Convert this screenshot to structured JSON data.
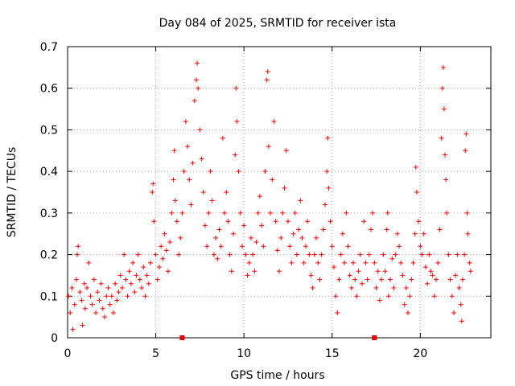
{
  "chart_data": {
    "type": "scatter",
    "title": "Day 084 of 2025, SRMTID for receiver ista",
    "xlabel": "GPS time / hours",
    "ylabel": "SRMTID / TECUs",
    "xlim": [
      0,
      24
    ],
    "ylim": [
      0,
      0.7
    ],
    "xticks": [
      0,
      5,
      10,
      15,
      20
    ],
    "xtick_labels": [
      "0",
      "5",
      "10",
      "15",
      "20"
    ],
    "yticks": [
      0,
      0.1,
      0.2,
      0.3,
      0.4,
      0.5,
      0.6,
      0.7
    ],
    "ytick_labels": [
      "0",
      "0.1",
      "0.2",
      "0.3",
      "0.4",
      "0.5",
      "0.6",
      "0.7"
    ],
    "grid": true,
    "marker": "+",
    "color": "#ff0000",
    "x_markers": [
      6.5,
      17.4
    ],
    "series": [
      {
        "name": "SRMTID",
        "points": [
          [
            0.05,
            0.1
          ],
          [
            0.15,
            0.06
          ],
          [
            0.25,
            0.12
          ],
          [
            0.3,
            0.02
          ],
          [
            0.4,
            0.08
          ],
          [
            0.5,
            0.14
          ],
          [
            0.55,
            0.2
          ],
          [
            0.6,
            0.22
          ],
          [
            0.7,
            0.11
          ],
          [
            0.8,
            0.09
          ],
          [
            0.85,
            0.03
          ],
          [
            0.95,
            0.13
          ],
          [
            1.0,
            0.07
          ],
          [
            1.1,
            0.12
          ],
          [
            1.2,
            0.18
          ],
          [
            1.3,
            0.1
          ],
          [
            1.4,
            0.08
          ],
          [
            1.5,
            0.14
          ],
          [
            1.6,
            0.06
          ],
          [
            1.7,
            0.11
          ],
          [
            1.8,
            0.09
          ],
          [
            1.9,
            0.13
          ],
          [
            2.0,
            0.07
          ],
          [
            2.1,
            0.05
          ],
          [
            2.2,
            0.1
          ],
          [
            2.3,
            0.12
          ],
          [
            2.4,
            0.08
          ],
          [
            2.5,
            0.1
          ],
          [
            2.6,
            0.06
          ],
          [
            2.7,
            0.13
          ],
          [
            2.8,
            0.09
          ],
          [
            2.9,
            0.11
          ],
          [
            3.0,
            0.15
          ],
          [
            3.1,
            0.12
          ],
          [
            3.2,
            0.2
          ],
          [
            3.3,
            0.14
          ],
          [
            3.4,
            0.1
          ],
          [
            3.5,
            0.16
          ],
          [
            3.6,
            0.13
          ],
          [
            3.7,
            0.18
          ],
          [
            3.8,
            0.11
          ],
          [
            3.9,
            0.15
          ],
          [
            4.0,
            0.2
          ],
          [
            4.1,
            0.14
          ],
          [
            4.2,
            0.12
          ],
          [
            4.3,
            0.17
          ],
          [
            4.4,
            0.1
          ],
          [
            4.5,
            0.15
          ],
          [
            4.6,
            0.13
          ],
          [
            4.7,
            0.18
          ],
          [
            4.8,
            0.35
          ],
          [
            4.85,
            0.37
          ],
          [
            4.9,
            0.28
          ],
          [
            5.0,
            0.2
          ],
          [
            5.1,
            0.14
          ],
          [
            5.2,
            0.17
          ],
          [
            5.3,
            0.22
          ],
          [
            5.4,
            0.19
          ],
          [
            5.5,
            0.25
          ],
          [
            5.6,
            0.21
          ],
          [
            5.7,
            0.16
          ],
          [
            5.8,
            0.23
          ],
          [
            5.9,
            0.3
          ],
          [
            6.0,
            0.38
          ],
          [
            6.05,
            0.45
          ],
          [
            6.1,
            0.33
          ],
          [
            6.2,
            0.28
          ],
          [
            6.3,
            0.2
          ],
          [
            6.4,
            0.24
          ],
          [
            6.5,
            0.3
          ],
          [
            6.6,
            0.4
          ],
          [
            6.7,
            0.52
          ],
          [
            6.8,
            0.46
          ],
          [
            6.9,
            0.38
          ],
          [
            7.0,
            0.32
          ],
          [
            7.1,
            0.42
          ],
          [
            7.2,
            0.57
          ],
          [
            7.3,
            0.62
          ],
          [
            7.35,
            0.66
          ],
          [
            7.4,
            0.6
          ],
          [
            7.5,
            0.5
          ],
          [
            7.6,
            0.43
          ],
          [
            7.7,
            0.35
          ],
          [
            7.8,
            0.27
          ],
          [
            7.9,
            0.22
          ],
          [
            8.0,
            0.3
          ],
          [
            8.1,
            0.4
          ],
          [
            8.2,
            0.33
          ],
          [
            8.3,
            0.2
          ],
          [
            8.4,
            0.24
          ],
          [
            8.5,
            0.19
          ],
          [
            8.6,
            0.26
          ],
          [
            8.7,
            0.22
          ],
          [
            8.8,
            0.48
          ],
          [
            8.9,
            0.3
          ],
          [
            9.0,
            0.35
          ],
          [
            9.1,
            0.28
          ],
          [
            9.2,
            0.2
          ],
          [
            9.3,
            0.16
          ],
          [
            9.4,
            0.25
          ],
          [
            9.5,
            0.44
          ],
          [
            9.55,
            0.6
          ],
          [
            9.6,
            0.52
          ],
          [
            9.7,
            0.4
          ],
          [
            9.8,
            0.3
          ],
          [
            9.9,
            0.22
          ],
          [
            10.0,
            0.27
          ],
          [
            10.1,
            0.2
          ],
          [
            10.2,
            0.15
          ],
          [
            10.3,
            0.18
          ],
          [
            10.4,
            0.24
          ],
          [
            10.5,
            0.2
          ],
          [
            10.6,
            0.16
          ],
          [
            10.7,
            0.23
          ],
          [
            10.8,
            0.3
          ],
          [
            10.9,
            0.34
          ],
          [
            11.0,
            0.27
          ],
          [
            11.1,
            0.22
          ],
          [
            11.2,
            0.4
          ],
          [
            11.3,
            0.62
          ],
          [
            11.35,
            0.64
          ],
          [
            11.4,
            0.46
          ],
          [
            11.5,
            0.3
          ],
          [
            11.6,
            0.38
          ],
          [
            11.7,
            0.52
          ],
          [
            11.8,
            0.28
          ],
          [
            11.9,
            0.21
          ],
          [
            12.0,
            0.16
          ],
          [
            12.1,
            0.24
          ],
          [
            12.2,
            0.3
          ],
          [
            12.3,
            0.36
          ],
          [
            12.4,
            0.45
          ],
          [
            12.5,
            0.28
          ],
          [
            12.6,
            0.22
          ],
          [
            12.7,
            0.18
          ],
          [
            12.8,
            0.25
          ],
          [
            12.9,
            0.3
          ],
          [
            13.0,
            0.2
          ],
          [
            13.1,
            0.26
          ],
          [
            13.2,
            0.33
          ],
          [
            13.3,
            0.24
          ],
          [
            13.4,
            0.18
          ],
          [
            13.5,
            0.22
          ],
          [
            13.6,
            0.28
          ],
          [
            13.7,
            0.2
          ],
          [
            13.8,
            0.15
          ],
          [
            13.9,
            0.12
          ],
          [
            14.0,
            0.2
          ],
          [
            14.1,
            0.24
          ],
          [
            14.2,
            0.18
          ],
          [
            14.3,
            0.14
          ],
          [
            14.4,
            0.2
          ],
          [
            14.5,
            0.26
          ],
          [
            14.6,
            0.32
          ],
          [
            14.7,
            0.4
          ],
          [
            14.75,
            0.48
          ],
          [
            14.8,
            0.36
          ],
          [
            14.9,
            0.28
          ],
          [
            15.0,
            0.22
          ],
          [
            15.1,
            0.17
          ],
          [
            15.2,
            0.1
          ],
          [
            15.3,
            0.06
          ],
          [
            15.4,
            0.14
          ],
          [
            15.5,
            0.2
          ],
          [
            15.6,
            0.25
          ],
          [
            15.7,
            0.18
          ],
          [
            15.8,
            0.3
          ],
          [
            15.9,
            0.22
          ],
          [
            16.0,
            0.15
          ],
          [
            16.1,
            0.12
          ],
          [
            16.2,
            0.18
          ],
          [
            16.3,
            0.14
          ],
          [
            16.4,
            0.1
          ],
          [
            16.5,
            0.16
          ],
          [
            16.6,
            0.2
          ],
          [
            16.7,
            0.13
          ],
          [
            16.8,
            0.28
          ],
          [
            16.9,
            0.18
          ],
          [
            17.0,
            0.14
          ],
          [
            17.1,
            0.2
          ],
          [
            17.2,
            0.26
          ],
          [
            17.3,
            0.3
          ],
          [
            17.4,
            0.18
          ],
          [
            17.5,
            0.12
          ],
          [
            17.6,
            0.16
          ],
          [
            17.7,
            0.09
          ],
          [
            17.8,
            0.14
          ],
          [
            17.9,
            0.2
          ],
          [
            18.0,
            0.16
          ],
          [
            18.1,
            0.26
          ],
          [
            18.15,
            0.3
          ],
          [
            18.2,
            0.1
          ],
          [
            18.3,
            0.14
          ],
          [
            18.4,
            0.19
          ],
          [
            18.5,
            0.12
          ],
          [
            18.6,
            0.2
          ],
          [
            18.7,
            0.25
          ],
          [
            18.8,
            0.22
          ],
          [
            18.9,
            0.18
          ],
          [
            19.0,
            0.15
          ],
          [
            19.1,
            0.08
          ],
          [
            19.2,
            0.12
          ],
          [
            19.3,
            0.06
          ],
          [
            19.4,
            0.1
          ],
          [
            19.5,
            0.14
          ],
          [
            19.6,
            0.18
          ],
          [
            19.7,
            0.25
          ],
          [
            19.75,
            0.41
          ],
          [
            19.8,
            0.35
          ],
          [
            19.9,
            0.28
          ],
          [
            20.0,
            0.22
          ],
          [
            20.1,
            0.2
          ],
          [
            20.2,
            0.25
          ],
          [
            20.3,
            0.17
          ],
          [
            20.4,
            0.13
          ],
          [
            20.5,
            0.2
          ],
          [
            20.6,
            0.16
          ],
          [
            20.7,
            0.15
          ],
          [
            20.8,
            0.1
          ],
          [
            20.9,
            0.14
          ],
          [
            21.0,
            0.18
          ],
          [
            21.1,
            0.26
          ],
          [
            21.2,
            0.48
          ],
          [
            21.25,
            0.6
          ],
          [
            21.3,
            0.65
          ],
          [
            21.35,
            0.55
          ],
          [
            21.4,
            0.44
          ],
          [
            21.45,
            0.38
          ],
          [
            21.5,
            0.3
          ],
          [
            21.6,
            0.2
          ],
          [
            21.7,
            0.14
          ],
          [
            21.8,
            0.1
          ],
          [
            21.9,
            0.06
          ],
          [
            22.0,
            0.15
          ],
          [
            22.1,
            0.2
          ],
          [
            22.2,
            0.12
          ],
          [
            22.3,
            0.08
          ],
          [
            22.35,
            0.04
          ],
          [
            22.4,
            0.14
          ],
          [
            22.5,
            0.2
          ],
          [
            22.55,
            0.45
          ],
          [
            22.6,
            0.49
          ],
          [
            22.65,
            0.3
          ],
          [
            22.7,
            0.25
          ],
          [
            22.8,
            0.18
          ],
          [
            22.85,
            0.16
          ]
        ]
      }
    ]
  }
}
